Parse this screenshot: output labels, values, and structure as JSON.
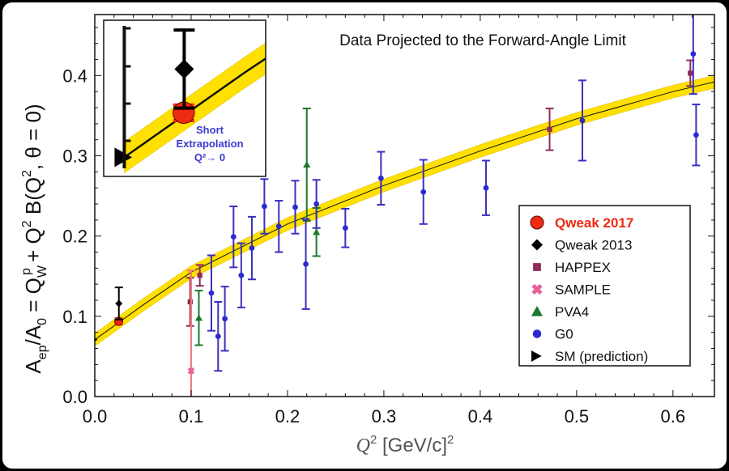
{
  "chart_data": {
    "type": "scatter",
    "title": "Data Projected to the Forward-Angle Limit",
    "xlabel": {
      "main": "Q",
      "sup": "2",
      "unit": " [GeV/c]",
      "unit_sup": "2"
    },
    "ylabel": {
      "a": "A",
      "a_sub": "ep",
      "slash": "/A",
      "zero_sub": "0",
      "eq": " = Q",
      "w_sub": "W",
      "p_sup": "p",
      "plus": " + Q",
      "two_sup": "2",
      "rest": " B(Q",
      "two_sup2": "2",
      "tail": ", θ = 0)"
    },
    "xlim": [
      0,
      0.643
    ],
    "ylim": [
      0,
      0.476
    ],
    "xticks": [
      "0.0",
      "0.1",
      "0.2",
      "0.3",
      "0.4",
      "0.5",
      "0.6"
    ],
    "yticks": [
      "0.0",
      "0.1",
      "0.2",
      "0.3",
      "0.4"
    ],
    "grid": false,
    "legend_position": "bottom-right",
    "fit_curve": {
      "x": [
        0,
        0.05,
        0.1,
        0.2,
        0.3,
        0.4,
        0.5,
        0.6,
        0.643
      ],
      "y": [
        0.0708,
        0.114,
        0.155,
        0.215,
        0.263,
        0.306,
        0.346,
        0.38,
        0.392
      ],
      "band_halfwidth": 0.008,
      "band_color": "#ffe000"
    },
    "series": [
      {
        "name": "Qweak 2017",
        "marker": "circle",
        "color": "#ee2a10",
        "bold": true,
        "points": [
          [
            0.0248,
            0.0936,
            0.004
          ]
        ]
      },
      {
        "name": "Qweak 2013",
        "marker": "diamond",
        "color": "#000000",
        "points": [
          [
            0.025,
            0.116,
            0.02
          ]
        ]
      },
      {
        "name": "HAPPEX",
        "marker": "square",
        "color": "#8e2c5c",
        "points": [
          [
            0.099,
            0.118,
            0.03
          ],
          [
            0.109,
            0.151,
            0.013
          ],
          [
            0.472,
            0.333,
            0.026
          ],
          [
            0.618,
            0.403,
            0.016
          ]
        ]
      },
      {
        "name": "SAMPLE",
        "marker": "cross",
        "color": "#e8609a",
        "errcolor": "#f07878",
        "points": [
          [
            0.1,
            0.032,
            0.125
          ]
        ]
      },
      {
        "name": "PVA4",
        "marker": "triangle",
        "color": "#1a7a2a",
        "points": [
          [
            0.108,
            0.098,
            0.034
          ],
          [
            0.22,
            0.289,
            0.07
          ],
          [
            0.23,
            0.205,
            0.03
          ]
        ]
      },
      {
        "name": "G0",
        "marker": "dot",
        "color": "#2a2ad0",
        "errcolor": "#3a30c0",
        "points": [
          [
            0.121,
            0.129,
            0.047
          ],
          [
            0.128,
            0.075,
            0.043
          ],
          [
            0.135,
            0.097,
            0.04
          ],
          [
            0.144,
            0.199,
            0.038
          ],
          [
            0.152,
            0.151,
            0.04
          ],
          [
            0.163,
            0.185,
            0.039
          ],
          [
            0.176,
            0.237,
            0.034
          ],
          [
            0.191,
            0.212,
            0.032
          ],
          [
            0.208,
            0.236,
            0.033
          ],
          [
            0.219,
            0.165,
            0.056
          ],
          [
            0.23,
            0.24,
            0.03
          ],
          [
            0.26,
            0.21,
            0.024
          ],
          [
            0.297,
            0.272,
            0.033
          ],
          [
            0.341,
            0.255,
            0.04
          ],
          [
            0.406,
            0.26,
            0.034
          ],
          [
            0.506,
            0.344,
            0.05
          ],
          [
            0.621,
            0.427,
            0.05
          ],
          [
            0.624,
            0.326,
            0.038
          ]
        ]
      },
      {
        "name": "SM (prediction)",
        "marker": "triangle-right",
        "color": "#000000",
        "points": [
          [
            0,
            0.0708,
            0
          ]
        ]
      }
    ],
    "inset": {
      "xlim": [
        -0.0086,
        0.059
      ],
      "ylim": [
        0.061,
        0.141
      ],
      "annotation": [
        "Short",
        "Extrapolation",
        "Q²→ 0"
      ],
      "annotation_color": "#3b3bd0"
    }
  }
}
